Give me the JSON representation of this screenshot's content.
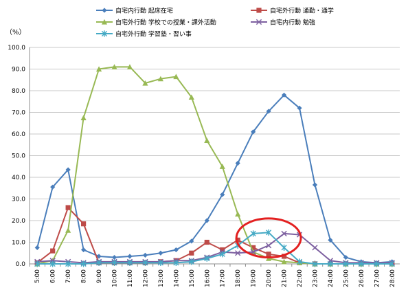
{
  "chart_data": {
    "type": "line",
    "title": "",
    "xlabel": "",
    "ylabel": "",
    "y_unit_label": "（%）",
    "ylim": [
      0,
      100
    ],
    "y_ticks": [
      "0.0",
      "10.0",
      "20.0",
      "30.0",
      "40.0",
      "50.0",
      "60.0",
      "70.0",
      "80.0",
      "90.0",
      "100.0"
    ],
    "y_tick_values": [
      0,
      10,
      20,
      30,
      40,
      50,
      60,
      70,
      80,
      90,
      100
    ],
    "grid": true,
    "legend_position": "top",
    "categories": [
      "5:00",
      "6:00",
      "7:00",
      "8:00",
      "9:00",
      "10:00",
      "11:00",
      "12:00",
      "13:00",
      "14:00",
      "15:00",
      "16:00",
      "17:00",
      "18:00",
      "19:00",
      "20:00",
      "21:00",
      "22:00",
      "23:00",
      "24:00",
      "25:00",
      "26:00",
      "27:00",
      "28:00"
    ],
    "series": [
      {
        "name": "自宅内行動 起床在宅",
        "color": "#4a7ebb",
        "marker": "diamond",
        "values": [
          7.5,
          35.5,
          43.5,
          6.5,
          3.5,
          3.0,
          3.5,
          4.0,
          5.0,
          6.5,
          10.5,
          20.0,
          32.0,
          46.5,
          61.0,
          70.5,
          78.0,
          72.0,
          36.5,
          11.0,
          3.0,
          1.0,
          0.5,
          1.0
        ]
      },
      {
        "name": "自宅外行動 通勤・通学",
        "color": "#be4b48",
        "marker": "square",
        "values": [
          0.5,
          6.0,
          26.0,
          18.5,
          0.5,
          0.5,
          0.5,
          0.5,
          1.0,
          1.5,
          5.0,
          10.0,
          6.5,
          11.0,
          7.5,
          4.5,
          3.5,
          0.5,
          0.0,
          0.0,
          0.0,
          0.0,
          0.0,
          0.0
        ]
      },
      {
        "name": "自宅外行動 学校での授業・課外活動",
        "color": "#98b954",
        "marker": "triangle",
        "values": [
          0.0,
          1.5,
          15.5,
          67.5,
          90.0,
          91.0,
          91.0,
          83.5,
          85.5,
          86.5,
          77.0,
          57.0,
          45.0,
          23.0,
          5.5,
          2.5,
          1.0,
          0.5,
          0.0,
          0.0,
          0.0,
          0.0,
          0.0,
          0.0
        ]
      },
      {
        "name": "自宅内行動 勉強",
        "color": "#7d60a0",
        "marker": "x",
        "values": [
          1.0,
          1.5,
          1.0,
          0.5,
          1.0,
          1.0,
          1.0,
          1.0,
          1.0,
          1.5,
          1.5,
          3.0,
          5.5,
          5.0,
          5.5,
          8.5,
          14.0,
          13.5,
          7.5,
          1.5,
          0.5,
          0.5,
          0.5,
          0.5
        ]
      },
      {
        "name": "自宅外行動 学習塾・習い事",
        "color": "#46aac5",
        "marker": "star",
        "values": [
          0.0,
          0.0,
          0.0,
          0.0,
          0.5,
          0.5,
          0.5,
          0.5,
          0.5,
          0.5,
          1.0,
          2.5,
          4.5,
          8.5,
          14.0,
          14.5,
          7.5,
          1.0,
          0.0,
          0.0,
          0.0,
          0.0,
          0.0,
          0.0
        ]
      }
    ],
    "annotation": {
      "shape": "ellipse",
      "color": "#e32020",
      "x_from": "18:00",
      "x_to": "22:00",
      "y_from": 3,
      "y_to": 21
    }
  }
}
